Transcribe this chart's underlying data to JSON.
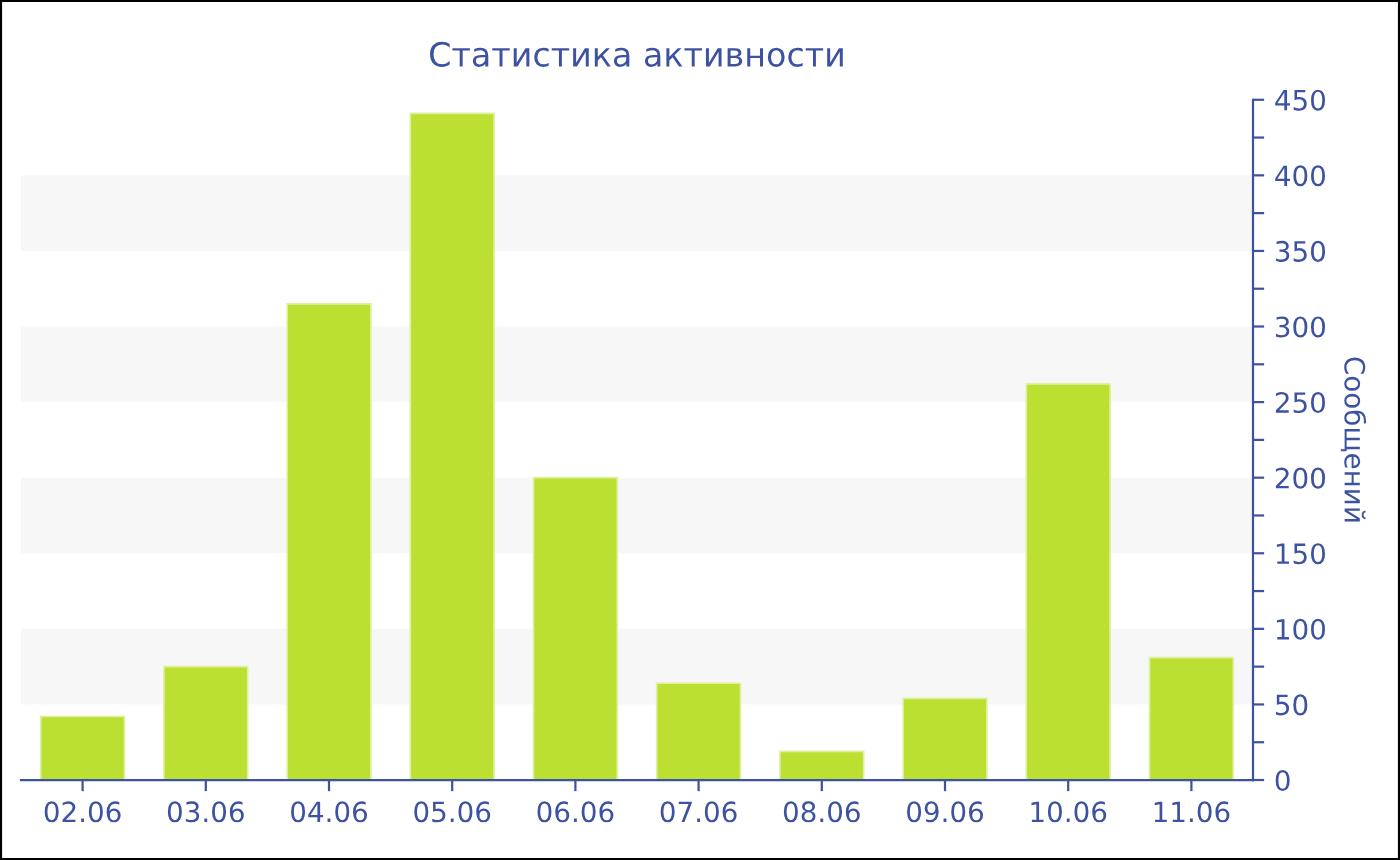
{
  "chart_data": {
    "type": "bar",
    "title": "Статистика активности",
    "ylabel": "Сообщений",
    "categories": [
      "02.06",
      "03.06",
      "04.06",
      "05.06",
      "06.06",
      "07.06",
      "08.06",
      "09.06",
      "10.06",
      "11.06"
    ],
    "series": [
      {
        "color": "#bbe032",
        "values": [
          42,
          75,
          315,
          441,
          200,
          64,
          19,
          54,
          262,
          81
        ]
      }
    ],
    "ylim": [
      0,
      450
    ],
    "yticks": [
      0,
      {
        "value": 25,
        "label": null
      },
      50,
      {
        "value": 75,
        "label": null
      },
      100,
      {
        "value": 125,
        "label": null
      },
      150,
      {
        "value": 175,
        "label": null
      },
      200,
      {
        "value": 225,
        "label": null
      },
      250,
      {
        "value": 275,
        "label": null
      },
      300,
      {
        "value": 325,
        "label": null
      },
      350,
      {
        "value": 375,
        "label": null
      },
      400,
      {
        "value": 425,
        "label": null
      },
      450
    ],
    "bands": [
      {
        "axis": "y",
        "from": 50,
        "to": 100,
        "color": "#f7f7f7"
      },
      {
        "axis": "y",
        "from": 150,
        "to": 200,
        "color": "#f7f7f7"
      },
      {
        "axis": "y",
        "from": 250,
        "to": 300,
        "color": "#f7f7f7"
      },
      {
        "axis": "y",
        "from": 350,
        "to": 400,
        "color": "#f7f7f7"
      }
    ],
    "grid": false,
    "legend": false
  }
}
